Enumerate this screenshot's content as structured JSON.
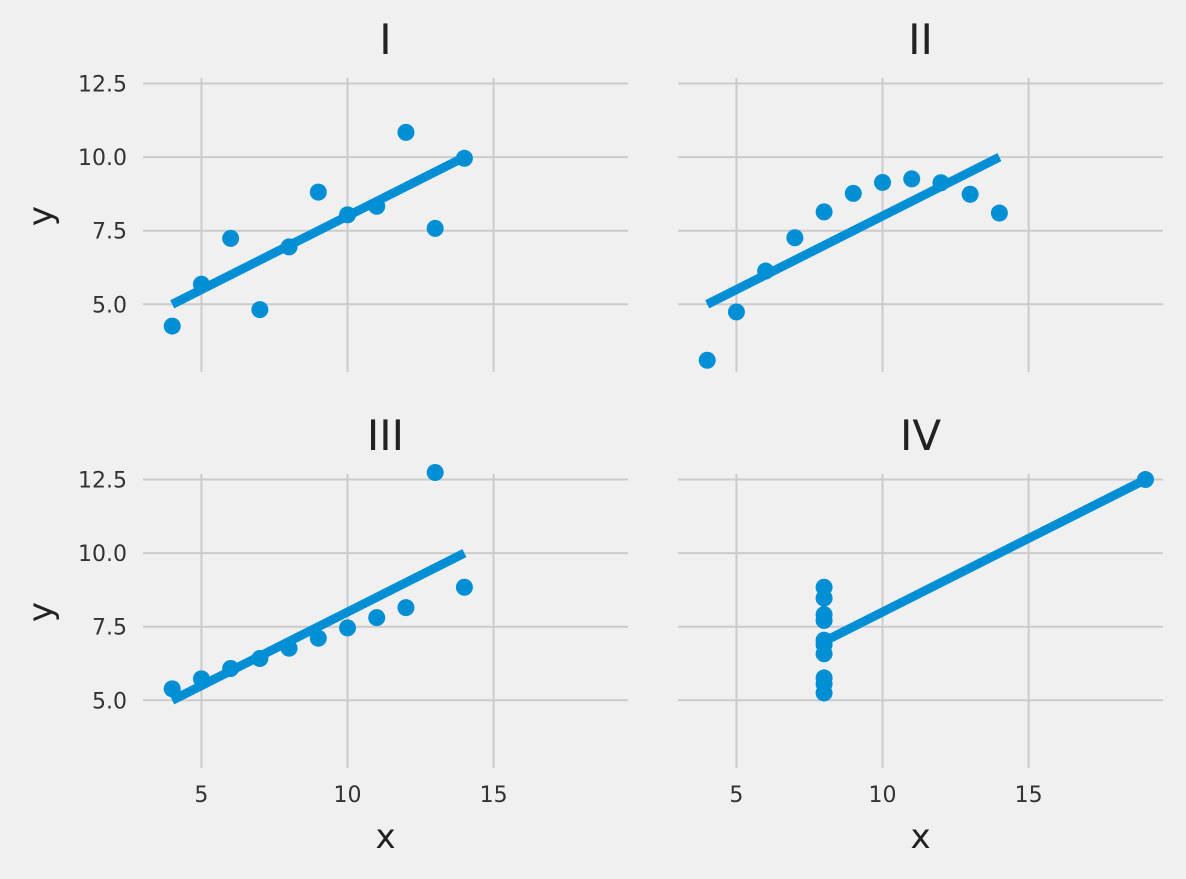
{
  "colors": {
    "background": "#f0f0f0",
    "grid": "#cbcbcb",
    "series": "#008fd5",
    "text": "#222222"
  },
  "chart_data": [
    {
      "type": "scatter",
      "title": "I",
      "xlabel": "",
      "ylabel": "y",
      "xlim": [
        3.0,
        19.6
      ],
      "ylim": [
        2.7,
        13.3
      ],
      "xticks": [
        5,
        10,
        15
      ],
      "yticks": [
        5.0,
        7.5,
        10.0,
        12.5
      ],
      "xtick_labels": [
        "",
        "",
        ""
      ],
      "ytick_labels": [
        "5.0",
        "7.5",
        "10.0",
        "12.5"
      ],
      "grid": true,
      "points": {
        "x": [
          10,
          8,
          13,
          9,
          11,
          14,
          6,
          4,
          12,
          7,
          5
        ],
        "y": [
          8.04,
          6.95,
          7.58,
          8.81,
          8.33,
          9.96,
          7.24,
          4.26,
          10.84,
          4.82,
          5.68
        ]
      },
      "fit_line": {
        "x": [
          4,
          14
        ],
        "y": [
          5.0,
          10.0
        ]
      }
    },
    {
      "type": "scatter",
      "title": "II",
      "xlabel": "",
      "ylabel": "",
      "xlim": [
        3.0,
        19.6
      ],
      "ylim": [
        2.7,
        13.3
      ],
      "xticks": [
        5,
        10,
        15
      ],
      "yticks": [
        5.0,
        7.5,
        10.0,
        12.5
      ],
      "xtick_labels": [
        "",
        "",
        ""
      ],
      "ytick_labels": [
        "",
        "",
        "",
        ""
      ],
      "grid": true,
      "points": {
        "x": [
          10,
          8,
          13,
          9,
          11,
          14,
          6,
          4,
          12,
          7,
          5
        ],
        "y": [
          9.14,
          8.14,
          8.74,
          8.77,
          9.26,
          8.1,
          6.13,
          3.1,
          9.13,
          7.26,
          4.74
        ]
      },
      "fit_line": {
        "x": [
          4,
          14
        ],
        "y": [
          5.0,
          10.0
        ]
      }
    },
    {
      "type": "scatter",
      "title": "III",
      "xlabel": "x",
      "ylabel": "y",
      "xlim": [
        3.0,
        19.6
      ],
      "ylim": [
        2.7,
        13.3
      ],
      "xticks": [
        5,
        10,
        15
      ],
      "yticks": [
        5.0,
        7.5,
        10.0,
        12.5
      ],
      "xtick_labels": [
        "5",
        "10",
        "15"
      ],
      "ytick_labels": [
        "5.0",
        "7.5",
        "10.0",
        "12.5"
      ],
      "grid": true,
      "points": {
        "x": [
          10,
          8,
          13,
          9,
          11,
          14,
          6,
          4,
          12,
          7,
          5
        ],
        "y": [
          7.46,
          6.77,
          12.74,
          7.11,
          7.81,
          8.84,
          6.08,
          5.39,
          8.15,
          6.42,
          5.73
        ]
      },
      "fit_line": {
        "x": [
          4,
          14
        ],
        "y": [
          5.0,
          10.0
        ]
      }
    },
    {
      "type": "scatter",
      "title": "IV",
      "xlabel": "x",
      "ylabel": "",
      "xlim": [
        3.0,
        19.6
      ],
      "ylim": [
        2.7,
        13.3
      ],
      "xticks": [
        5,
        10,
        15
      ],
      "yticks": [
        5.0,
        7.5,
        10.0,
        12.5
      ],
      "xtick_labels": [
        "5",
        "10",
        "15"
      ],
      "ytick_labels": [
        "",
        "",
        "",
        ""
      ],
      "grid": true,
      "points": {
        "x": [
          8,
          8,
          8,
          8,
          8,
          8,
          8,
          19,
          8,
          8,
          8
        ],
        "y": [
          6.58,
          5.76,
          7.71,
          8.84,
          8.47,
          7.04,
          5.25,
          12.5,
          5.56,
          7.91,
          6.89
        ]
      },
      "fit_line": {
        "x": [
          8,
          19
        ],
        "y": [
          7.0,
          12.5
        ]
      }
    }
  ]
}
